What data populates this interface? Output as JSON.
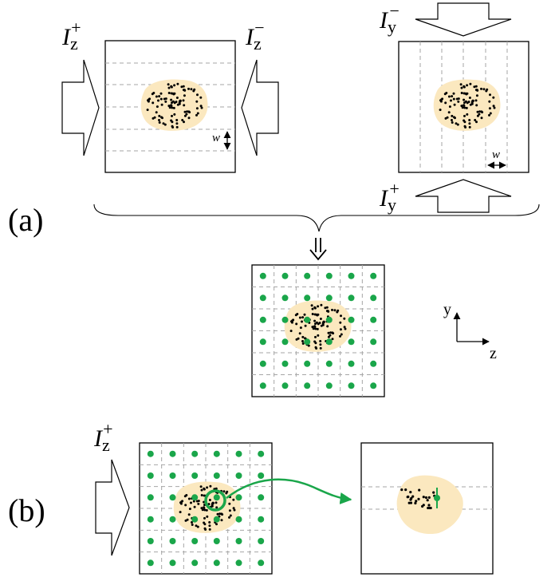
{
  "panel_labels": {
    "a": "(a)",
    "b": "(b)"
  },
  "beams": {
    "iz_plus": {
      "symbol": "I",
      "sub": "z",
      "sup": "+"
    },
    "iz_minus": {
      "symbol": "I",
      "sub": "z",
      "sup": "−"
    },
    "iy_minus": {
      "symbol": "I",
      "sub": "y",
      "sup": "−"
    },
    "iy_plus": {
      "symbol": "I",
      "sub": "y",
      "sup": "+"
    },
    "iz_plus_b": {
      "symbol": "I",
      "sub": "z",
      "sup": "+"
    }
  },
  "spacing_label": "w",
  "axes": {
    "y": "y",
    "z": "z"
  },
  "colors": {
    "blob": "#fbe8bf",
    "dot": "#000000",
    "green": "#1aa64a",
    "grid": "#a6a6a6",
    "frame": "#000000"
  }
}
